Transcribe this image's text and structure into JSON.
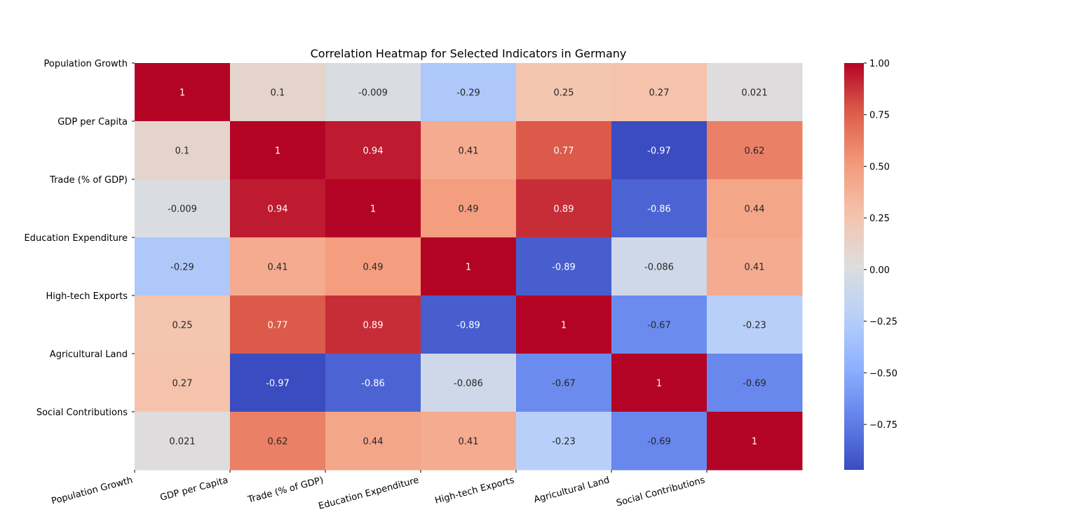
{
  "chart_data": {
    "type": "heatmap",
    "title": "Correlation Heatmap for Selected Indicators in Germany",
    "row_labels": [
      "Population Growth",
      "GDP per Capita",
      "Trade (% of GDP)",
      "Education Expenditure",
      "High-tech Exports",
      "Agricultural Land",
      "Social Contributions"
    ],
    "col_labels": [
      "Population Growth",
      "GDP per Capita",
      "Trade (% of GDP)",
      "Education Expenditure",
      "High-tech Exports",
      "Agricultural Land",
      "Social Contributions"
    ],
    "values": [
      [
        1,
        0.1,
        -0.009,
        -0.29,
        0.25,
        0.27,
        0.021
      ],
      [
        0.1,
        1,
        0.94,
        0.41,
        0.77,
        -0.97,
        0.62
      ],
      [
        -0.009,
        0.94,
        1,
        0.49,
        0.89,
        -0.86,
        0.44
      ],
      [
        -0.29,
        0.41,
        0.49,
        1,
        -0.89,
        -0.086,
        0.41
      ],
      [
        0.25,
        0.77,
        0.89,
        -0.89,
        1,
        -0.67,
        -0.23
      ],
      [
        0.27,
        -0.97,
        -0.86,
        -0.086,
        -0.67,
        1,
        -0.69
      ],
      [
        0.021,
        0.62,
        0.44,
        0.41,
        -0.23,
        -0.69,
        1
      ]
    ],
    "annotations": true,
    "colormap": "coolwarm",
    "colorbar": {
      "range": [
        -0.97,
        1.0
      ],
      "ticks": [
        1.0,
        0.75,
        0.5,
        0.25,
        0.0,
        -0.25,
        -0.5,
        -0.75
      ],
      "tick_labels": [
        "1.00",
        "0.75",
        "0.50",
        "0.25",
        "0.00",
        "−0.25",
        "−0.50",
        "−0.75"
      ]
    },
    "xlabel": "",
    "ylabel": ""
  }
}
